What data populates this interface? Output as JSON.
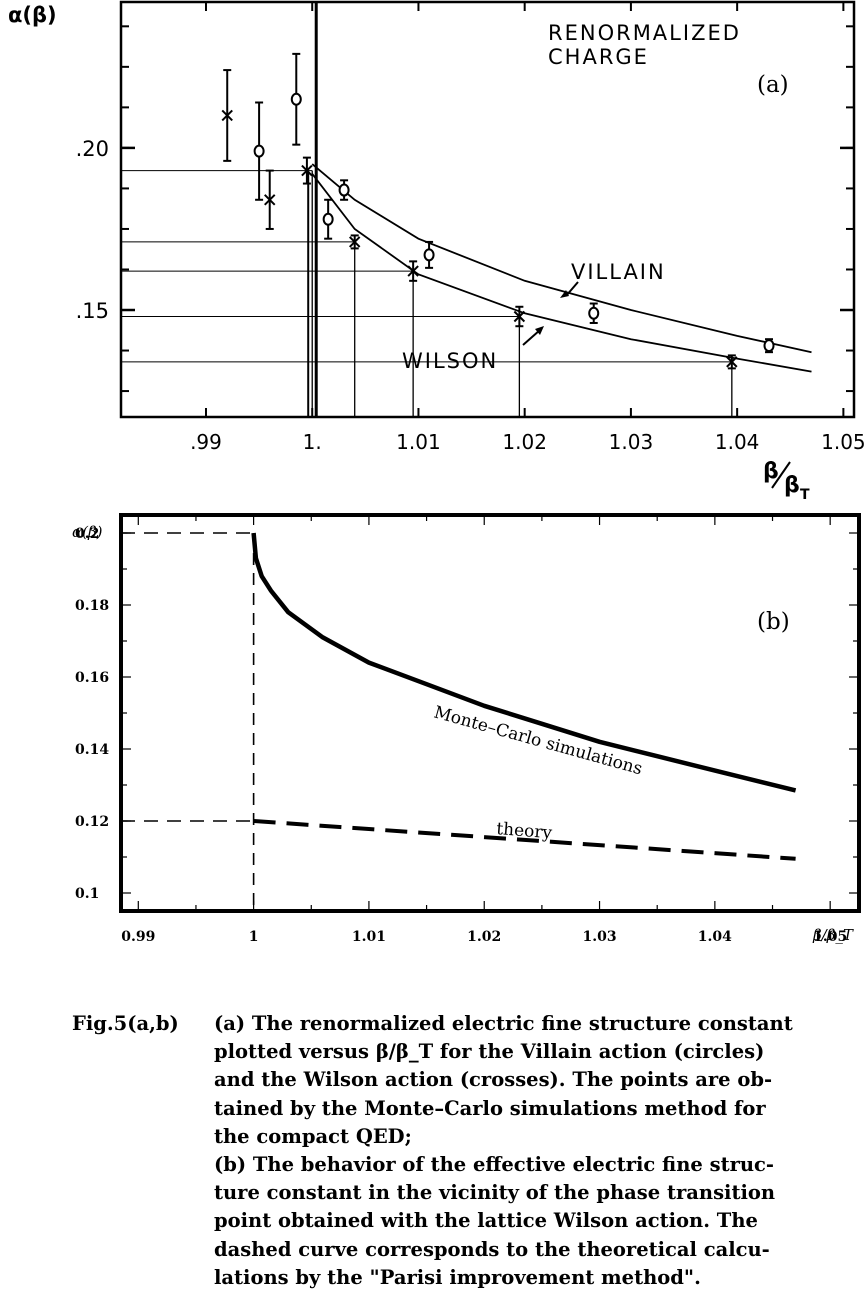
{
  "chart_data": [
    {
      "type": "scatter",
      "panel_label": "(a)",
      "annotation": [
        "RENORMALIZED",
        "CHARGE"
      ],
      "ylabel": "α(β)",
      "xlabel": "β/β_T",
      "xlabel_main": "β",
      "xlabel_den": "β",
      "xlabel_sub": "T",
      "xlim": [
        0.982,
        1.051
      ],
      "ylim": [
        0.117,
        0.245
      ],
      "x_ticks": [
        {
          "v": 0.99,
          "label": ".99"
        },
        {
          "v": 1.0,
          "label": "1."
        },
        {
          "v": 1.01,
          "label": "1.01"
        },
        {
          "v": 1.02,
          "label": "1.02"
        },
        {
          "v": 1.03,
          "label": "1.03"
        },
        {
          "v": 1.04,
          "label": "1.04"
        },
        {
          "v": 1.05,
          "label": "1.05"
        }
      ],
      "y_ticks": [
        {
          "v": 0.2,
          "label": ".20"
        },
        {
          "v": 0.15,
          "label": ".15"
        }
      ],
      "series": [
        {
          "name": "VILLAIN",
          "marker": "circle",
          "points": [
            {
              "x": 0.995,
              "y": 0.199,
              "err": 0.015
            },
            {
              "x": 0.9985,
              "y": 0.215,
              "err": 0.014
            },
            {
              "x": 1.0015,
              "y": 0.178,
              "err": 0.006
            },
            {
              "x": 1.003,
              "y": 0.187,
              "err": 0.003
            },
            {
              "x": 1.011,
              "y": 0.167,
              "err": 0.004
            },
            {
              "x": 1.0265,
              "y": 0.149,
              "err": 0.003
            },
            {
              "x": 1.043,
              "y": 0.139,
              "err": 0.002
            }
          ],
          "fit": [
            [
              1.0,
              0.195
            ],
            [
              1.004,
              0.184
            ],
            [
              1.01,
              0.172
            ],
            [
              1.02,
              0.159
            ],
            [
              1.03,
              0.15
            ],
            [
              1.04,
              0.142
            ],
            [
              1.047,
              0.137
            ]
          ]
        },
        {
          "name": "WILSON",
          "marker": "cross",
          "points": [
            {
              "x": 0.992,
              "y": 0.21,
              "err": 0.014
            },
            {
              "x": 0.996,
              "y": 0.184,
              "err": 0.009
            },
            {
              "x": 0.9995,
              "y": 0.193,
              "err": 0.004
            },
            {
              "x": 1.004,
              "y": 0.171,
              "err": 0.002
            },
            {
              "x": 1.0095,
              "y": 0.162,
              "err": 0.003
            },
            {
              "x": 1.0195,
              "y": 0.148,
              "err": 0.003
            },
            {
              "x": 1.0395,
              "y": 0.134,
              "err": 0.002
            }
          ],
          "fit": [
            [
              1.0,
              0.192
            ],
            [
              1.004,
              0.175
            ],
            [
              1.01,
              0.161
            ],
            [
              1.02,
              0.149
            ],
            [
              1.03,
              0.141
            ],
            [
              1.04,
              0.135
            ],
            [
              1.047,
              0.131
            ]
          ]
        }
      ]
    },
    {
      "type": "line",
      "panel_label": "(b)",
      "ylabel": "α(β)",
      "xlabel": "β/β_T",
      "xlim": [
        0.9885,
        1.0525
      ],
      "ylim": [
        0.095,
        0.205
      ],
      "x_ticks": [
        {
          "v": 0.99,
          "label": "0.99"
        },
        {
          "v": 1.0,
          "label": "1"
        },
        {
          "v": 1.01,
          "label": "1.01"
        },
        {
          "v": 1.02,
          "label": "1.02"
        },
        {
          "v": 1.03,
          "label": "1.03"
        },
        {
          "v": 1.04,
          "label": "1.04"
        },
        {
          "v": 1.05,
          "label": "1.05"
        }
      ],
      "y_ticks": [
        {
          "v": 0.2,
          "label": "0.2"
        },
        {
          "v": 0.18,
          "label": "0.18"
        },
        {
          "v": 0.16,
          "label": "0.16"
        },
        {
          "v": 0.14,
          "label": "0.14"
        },
        {
          "v": 0.12,
          "label": "0.12"
        },
        {
          "v": 0.1,
          "label": "0.1"
        }
      ],
      "series": [
        {
          "name": "Monte–Carlo simulations",
          "style": "solid",
          "points": [
            [
              1.0,
              0.2
            ],
            [
              1.0002,
              0.193
            ],
            [
              1.0007,
              0.188
            ],
            [
              1.0015,
              0.184
            ],
            [
              1.003,
              0.178
            ],
            [
              1.006,
              0.171
            ],
            [
              1.01,
              0.164
            ],
            [
              1.015,
              0.158
            ],
            [
              1.02,
              0.152
            ],
            [
              1.025,
              0.147
            ],
            [
              1.03,
              0.142
            ],
            [
              1.035,
              0.138
            ],
            [
              1.04,
              0.134
            ],
            [
              1.047,
              0.1285
            ]
          ]
        },
        {
          "name": "theory",
          "style": "dashed",
          "points": [
            [
              1.0,
              0.12
            ],
            [
              1.047,
              0.1095
            ]
          ]
        }
      ]
    }
  ],
  "caption": {
    "label": "Fig.5(a,b)",
    "lines_a": [
      "(a) The renormalized electric fine structure constant",
      "plotted versus β/β_T for the Villain action (circles)",
      "and the Wilson action (crosses). The points are ob-",
      "tained by the Monte–Carlo simulations method for",
      "the compact QED;"
    ],
    "lines_b": [
      "(b) The behavior of the effective electric fine struc-",
      "ture constant in the vicinity of the phase transition",
      "point obtained with the lattice Wilson action. The",
      "dashed curve corresponds to the theoretical calcu-",
      "lations by the \"Parisi improvement method\"."
    ]
  }
}
